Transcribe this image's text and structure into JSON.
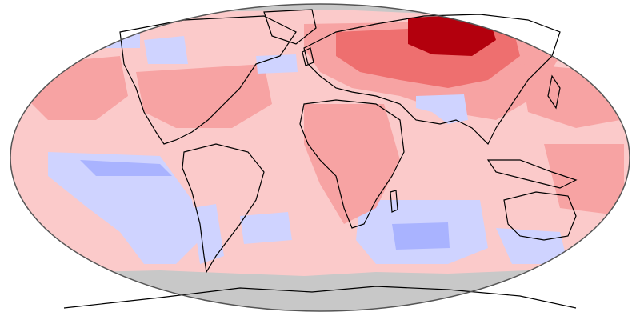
{
  "map": {
    "projection": "robinson",
    "colors": {
      "background": "#ffffff",
      "no_data": "#c8c8c8",
      "border_line": "#000000",
      "dark_red": "#b3000d",
      "red": "#dc2f2f",
      "medium_red": "#ee6f6f",
      "light_red": "#f7a3a3",
      "pale_red": "#fbcaca",
      "pale_blue": "#cfd3ff",
      "light_blue": "#a9b3ff"
    },
    "legend_shown": false,
    "regions": [
      {
        "name": "ocean-warm-base",
        "category": "pale_red"
      },
      {
        "name": "siberia-hotspot",
        "category": "dark_red"
      },
      {
        "name": "eurasia-warm",
        "category": "red"
      },
      {
        "name": "north-pacific-warm",
        "category": "light_red"
      },
      {
        "name": "south-pacific-cool",
        "category": "pale_blue"
      },
      {
        "name": "south-atlantic-cool",
        "category": "pale_blue"
      },
      {
        "name": "indian-ocean-cool",
        "category": "light_blue"
      },
      {
        "name": "australia-south-cool",
        "category": "light_blue"
      },
      {
        "name": "canada-cool",
        "category": "pale_blue"
      },
      {
        "name": "himalaya-cool",
        "category": "pale_blue"
      },
      {
        "name": "antarctica-no-data",
        "category": "no_data"
      },
      {
        "name": "arctic-no-data",
        "category": "no_data"
      }
    ]
  }
}
